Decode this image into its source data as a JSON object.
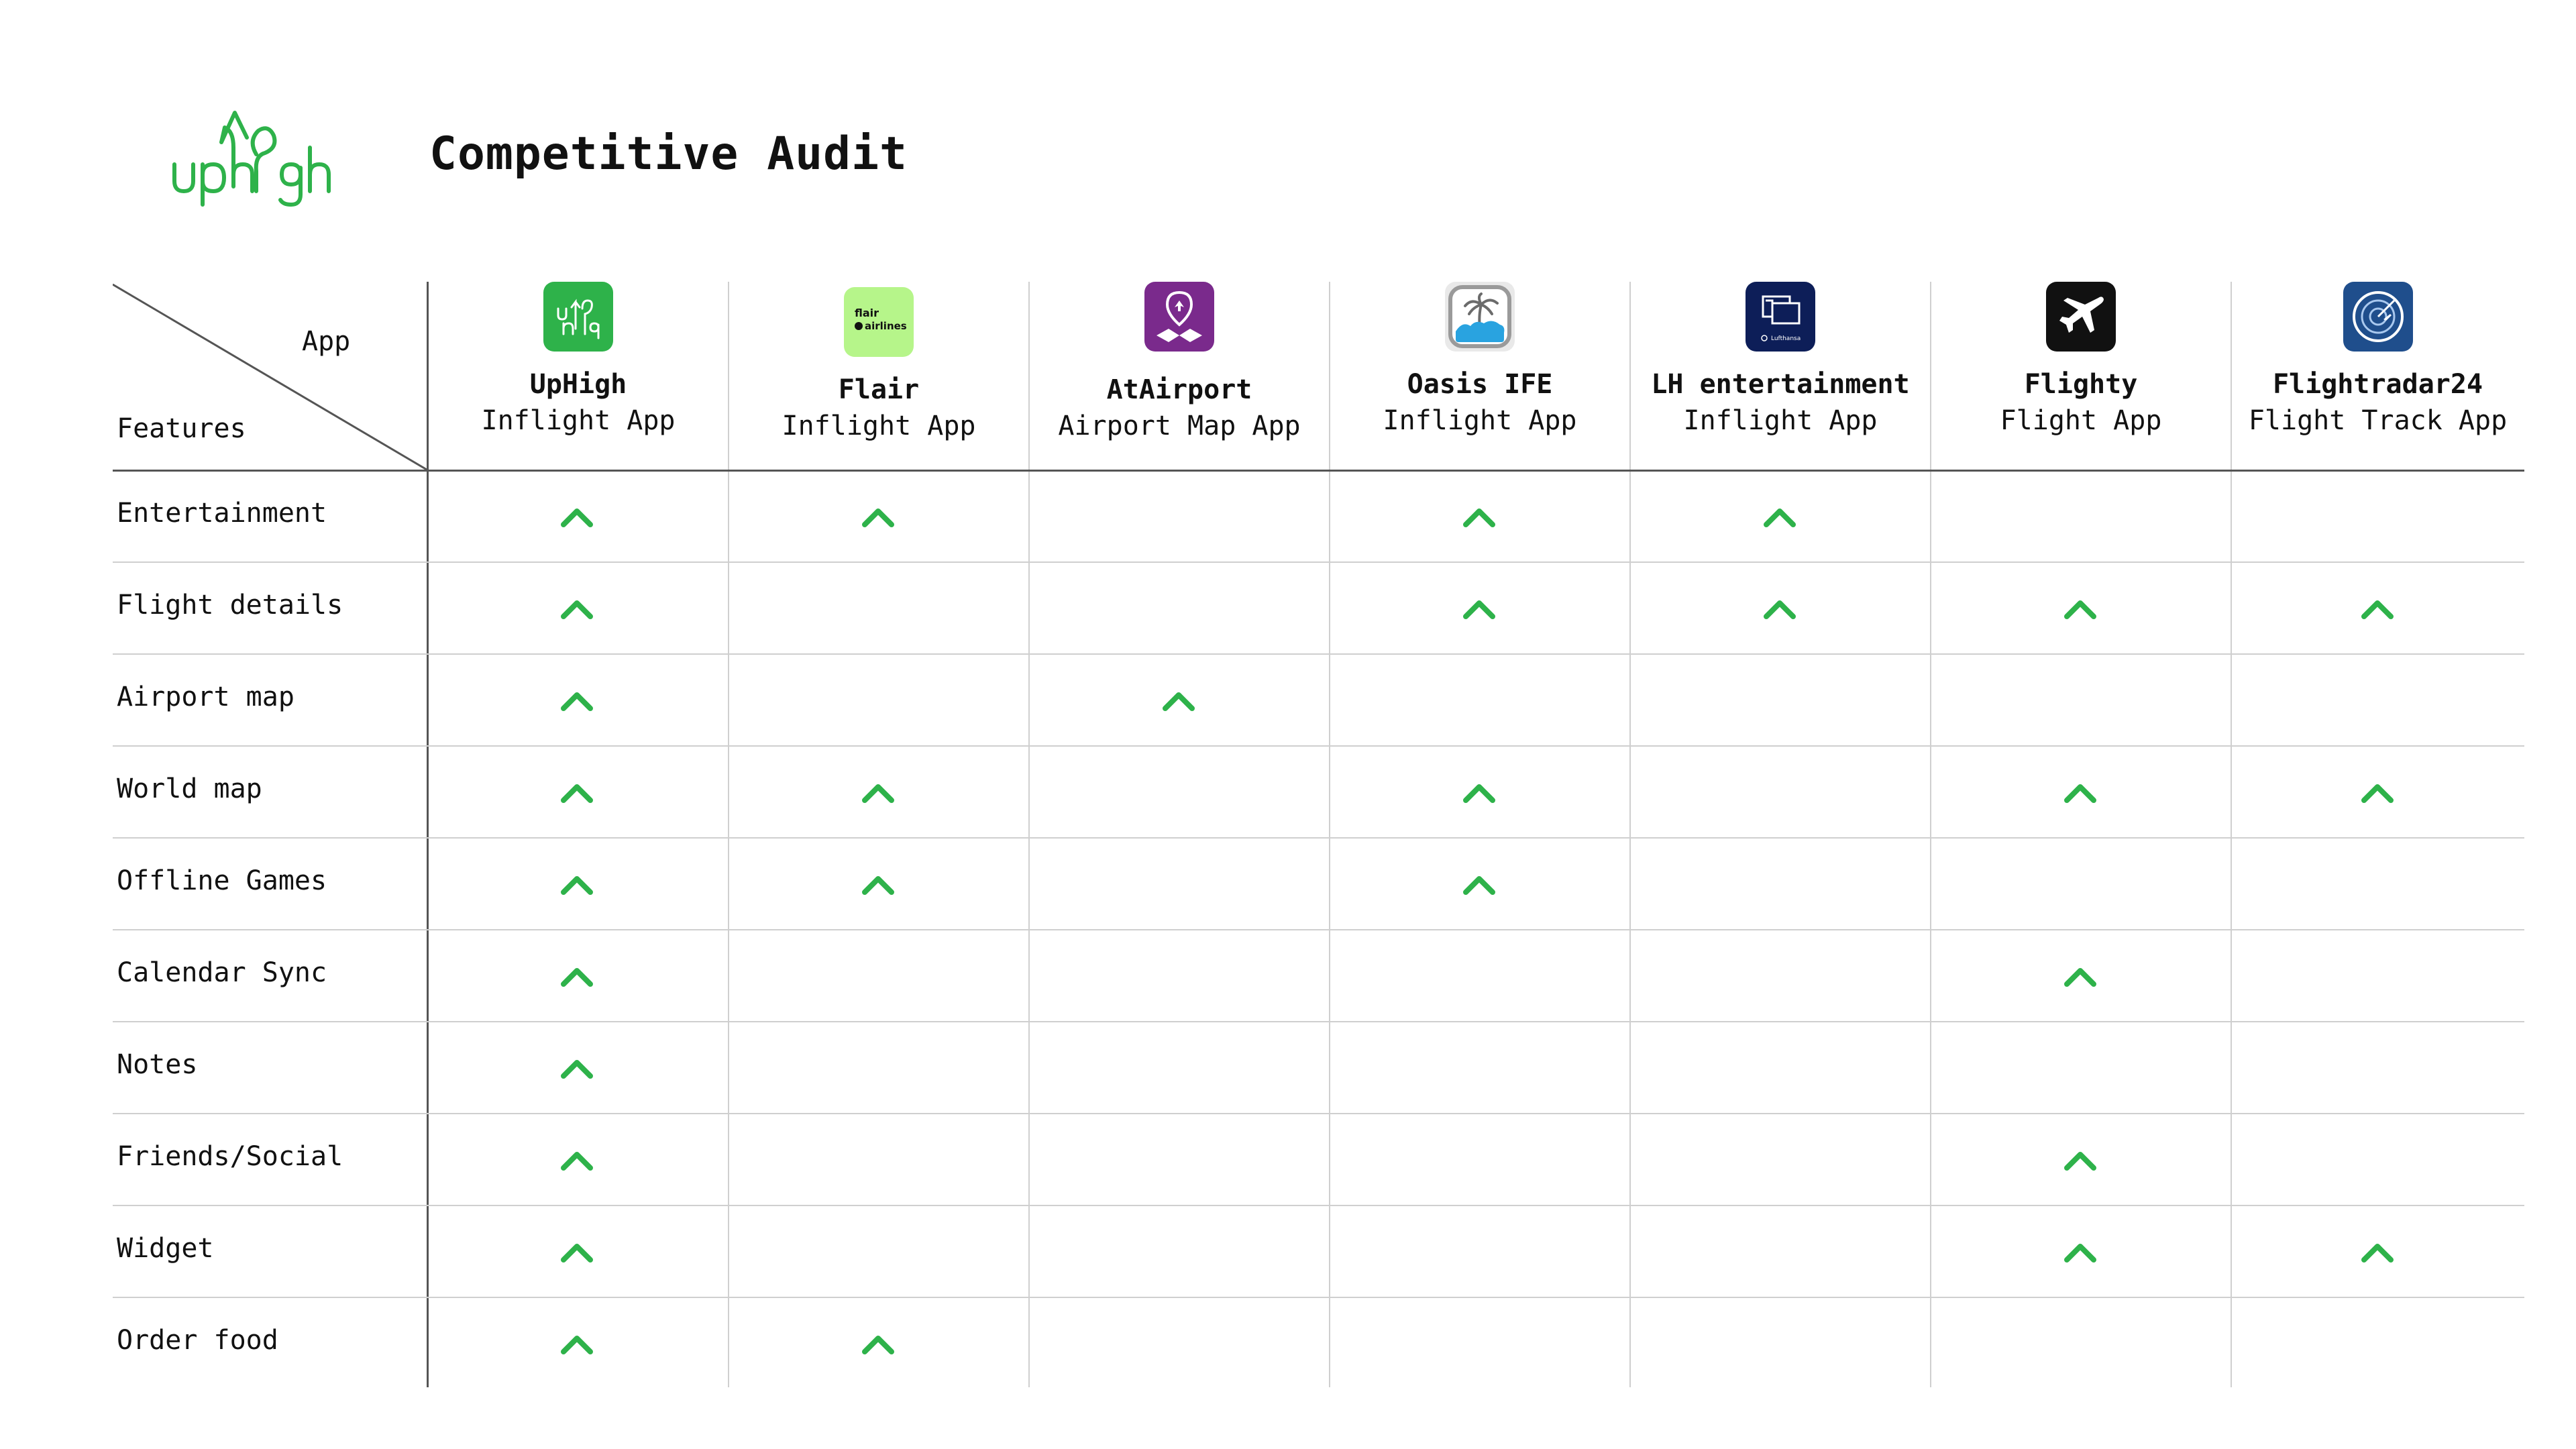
{
  "brand": {
    "logo_text": "uphigh",
    "accent": "#2eb24a"
  },
  "title": "Competitive Audit",
  "corner": {
    "app_label": "App",
    "features_label": "Features"
  },
  "apps": [
    {
      "name": "UpHigh",
      "sub": "Inflight App",
      "icon": "uphigh-logo-icon",
      "icon_bg": "#2eb24a"
    },
    {
      "name": "Flair",
      "sub": "Inflight App",
      "icon": "flair-airlines-icon",
      "icon_bg": "#b6f58a",
      "icon_text": [
        "flair",
        "airlines"
      ]
    },
    {
      "name": "AtAirport",
      "sub": "Airport Map App",
      "icon": "map-pin-icon",
      "icon_bg": "#7a2a8c"
    },
    {
      "name": "Oasis IFE",
      "sub": "Inflight App",
      "icon": "palm-island-icon",
      "icon_bg": "#e9e9e9"
    },
    {
      "name": "LH entertainment",
      "sub": "Inflight App",
      "icon": "lufthansa-screen-icon",
      "icon_bg": "#0d1e58",
      "icon_text": [
        "Lufthansa"
      ]
    },
    {
      "name": "Flighty",
      "sub": "Flight App",
      "icon": "airplane-icon",
      "icon_bg": "#111111"
    },
    {
      "name": "Flightradar24",
      "sub": "Flight Track App",
      "icon": "radar-icon",
      "icon_bg": "#1f4e8c"
    }
  ],
  "features": [
    {
      "label": "Entertainment",
      "checks": [
        true,
        true,
        false,
        true,
        true,
        false,
        false
      ]
    },
    {
      "label": "Flight details",
      "checks": [
        true,
        false,
        false,
        true,
        true,
        true,
        true
      ]
    },
    {
      "label": "Airport map",
      "checks": [
        true,
        false,
        true,
        false,
        false,
        false,
        false
      ]
    },
    {
      "label": "World map",
      "checks": [
        true,
        true,
        false,
        true,
        false,
        true,
        true
      ]
    },
    {
      "label": "Offline Games",
      "checks": [
        true,
        true,
        false,
        true,
        false,
        false,
        false
      ]
    },
    {
      "label": "Calendar Sync",
      "checks": [
        true,
        false,
        false,
        false,
        false,
        true,
        false
      ]
    },
    {
      "label": "Notes",
      "checks": [
        true,
        false,
        false,
        false,
        false,
        false,
        false
      ]
    },
    {
      "label": "Friends/Social",
      "checks": [
        true,
        false,
        false,
        false,
        false,
        true,
        false
      ]
    },
    {
      "label": "Widget",
      "checks": [
        true,
        false,
        false,
        false,
        false,
        true,
        true
      ]
    },
    {
      "label": "Order food",
      "checks": [
        true,
        true,
        false,
        false,
        false,
        false,
        false
      ]
    }
  ],
  "check_icon": "chevron-up-icon",
  "check_color": "#2eb24a"
}
